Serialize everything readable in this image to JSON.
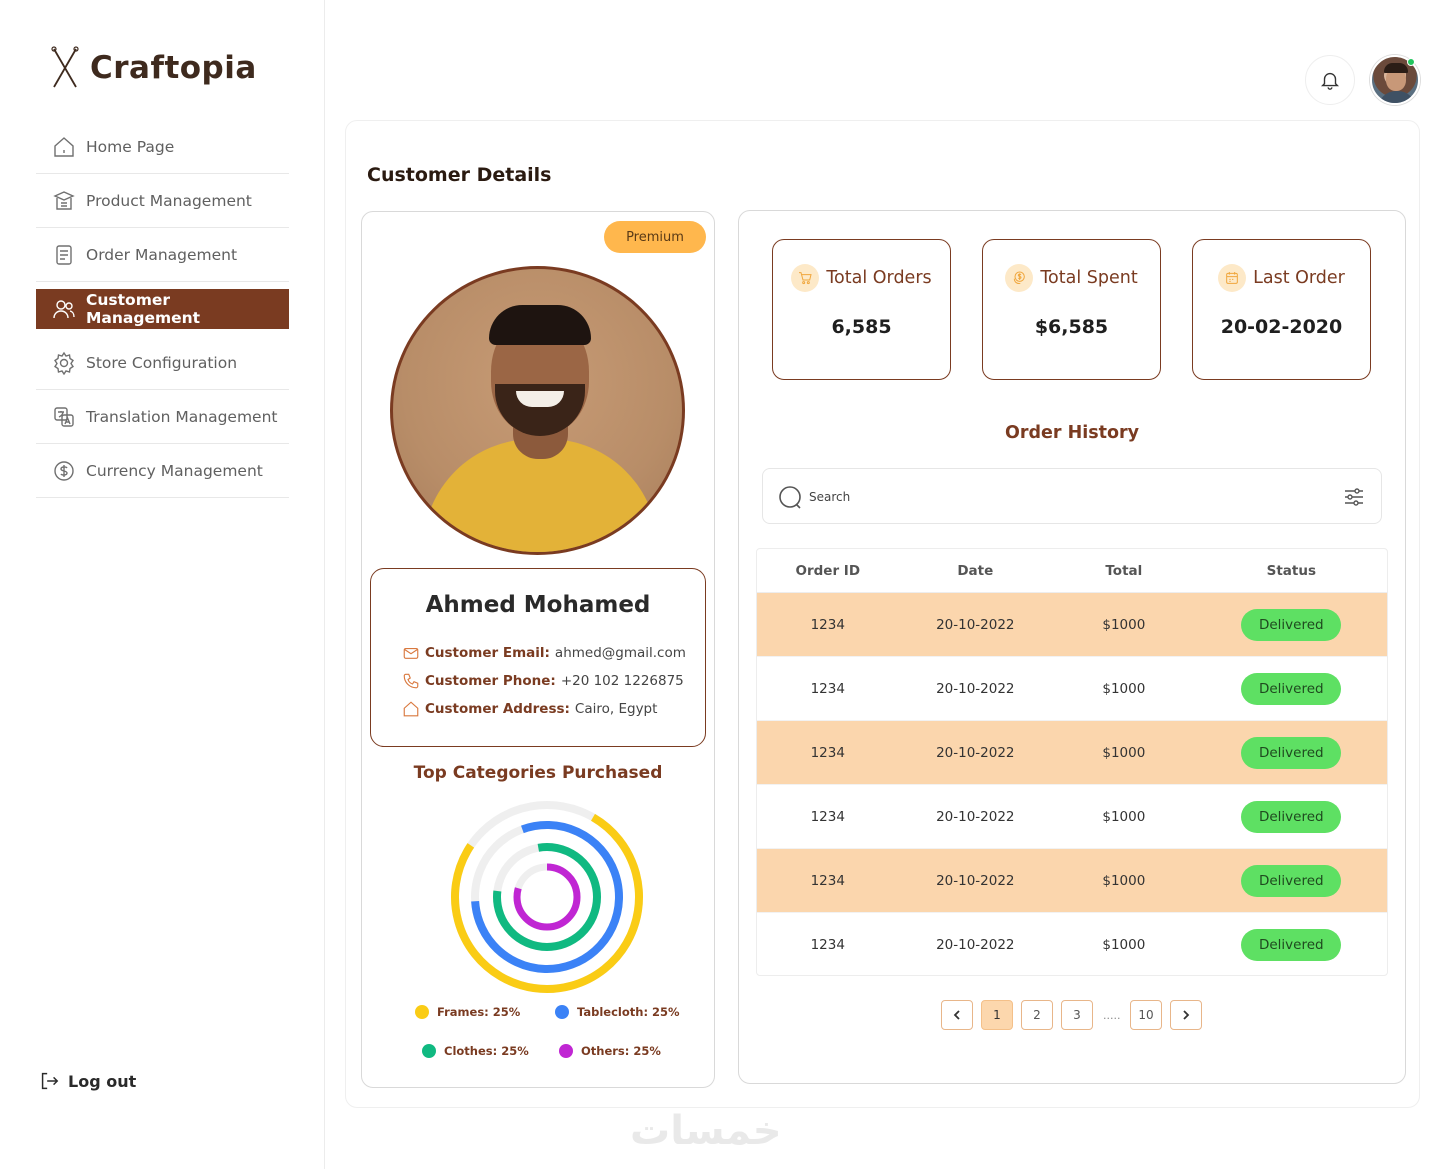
{
  "app": {
    "brand_name": "Craftopia",
    "accent_color": "#7a3b21",
    "watermark": "خمسات"
  },
  "sidebar": {
    "items": [
      {
        "label": "Home Page",
        "icon": "home-icon"
      },
      {
        "label": "Product Management",
        "icon": "box-icon"
      },
      {
        "label": "Order Management",
        "icon": "receipt-icon"
      },
      {
        "label": "Customer Management",
        "icon": "users-icon",
        "active": true
      },
      {
        "label": "Store Configuration",
        "icon": "gear-icon"
      },
      {
        "label": "Translation Management",
        "icon": "translate-icon"
      },
      {
        "label": "Currency Management",
        "icon": "dollar-icon"
      }
    ],
    "logout_label": "Log out"
  },
  "header": {
    "bell_icon": "bell-icon",
    "user_status": "online"
  },
  "page": {
    "title": "Customer Details"
  },
  "profile": {
    "badge": "Premium",
    "name": "Ahmed Mohamed",
    "email_label": "Customer Email:",
    "email_value": "ahmed@gmail.com",
    "phone_label": "Customer Phone:",
    "phone_value": "+20 102 1226875",
    "address_label": "Customer Address:",
    "address_value": "Cairo, Egypt"
  },
  "categories": {
    "title": "Top Categories Purchased",
    "legend": [
      {
        "label": "Frames: 25%",
        "color": "#facc15"
      },
      {
        "label": "Tablecloth: 25%",
        "color": "#3b82f6"
      },
      {
        "label": "Clothes: 25%",
        "color": "#10b981"
      },
      {
        "label": "Others: 25%",
        "color": "#c026d3"
      }
    ]
  },
  "stats": [
    {
      "label": "Total Orders",
      "value": "6,585",
      "icon": "cart-icon"
    },
    {
      "label": "Total Spent",
      "value": "$6,585",
      "icon": "coins-icon"
    },
    {
      "label": "Last Order",
      "value": "20-02-2020",
      "icon": "calendar-icon"
    }
  ],
  "order_history": {
    "title": "Order History",
    "search_placeholder": "Search",
    "columns": [
      "Order ID",
      "Date",
      "Total",
      "Status"
    ],
    "rows": [
      {
        "id": "1234",
        "date": "20-10-2022",
        "total": "$1000",
        "status": "Delivered"
      },
      {
        "id": "1234",
        "date": "20-10-2022",
        "total": "$1000",
        "status": "Delivered"
      },
      {
        "id": "1234",
        "date": "20-10-2022",
        "total": "$1000",
        "status": "Delivered"
      },
      {
        "id": "1234",
        "date": "20-10-2022",
        "total": "$1000",
        "status": "Delivered"
      },
      {
        "id": "1234",
        "date": "20-10-2022",
        "total": "$1000",
        "status": "Delivered"
      },
      {
        "id": "1234",
        "date": "20-10-2022",
        "total": "$1000",
        "status": "Delivered"
      }
    ],
    "pagination": {
      "pages": [
        "1",
        "2",
        "3"
      ],
      "ellipsis": ".....",
      "last": "10",
      "current": "1"
    }
  }
}
